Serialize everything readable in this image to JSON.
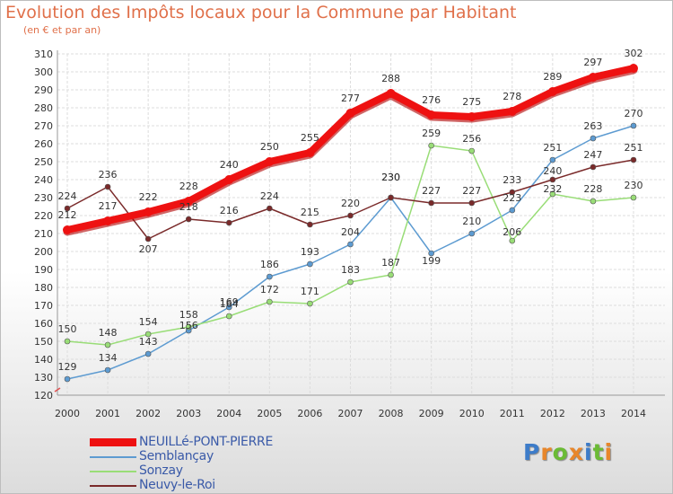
{
  "title": "Evolution des Impôts locaux pour la Commune par Habitant",
  "subtitle": "(en € et par an)",
  "logo": {
    "p": "P",
    "r": "r",
    "o": "o",
    "x": "x",
    "i": "i",
    "t": "t",
    "i2": "i"
  },
  "colors": {
    "NEUILLE": "#ee1111",
    "SEMBLANCAY": "#5d9bd1",
    "SONZAY": "#99dd77",
    "NEUVY": "#7a2a2a",
    "logo_p": "#3d7cc9",
    "logo_r": "#e8862a",
    "logo_o": "#6bbb35",
    "logo_x": "#e8862a",
    "logo_i": "#3d7cc9",
    "logo_t": "#6bbb35"
  },
  "chart_data": {
    "type": "line",
    "title": "Evolution des Impôts locaux pour la Commune par Habitant",
    "xlabel": "",
    "ylabel": "(en € et par an)",
    "categories": [
      "2000",
      "2001",
      "2002",
      "2003",
      "2004",
      "2005",
      "2006",
      "2007",
      "2008",
      "2009",
      "2010",
      "2011",
      "2012",
      "2013",
      "2014"
    ],
    "ylim": [
      120,
      310
    ],
    "yticks": [
      120,
      130,
      140,
      150,
      160,
      170,
      180,
      190,
      200,
      210,
      220,
      230,
      240,
      250,
      260,
      270,
      280,
      290,
      300,
      310
    ],
    "grid": true,
    "legend": "bottom-left",
    "series": [
      {
        "name": "NEUILLé-PONT-PIERRE",
        "key": "NEUILLE",
        "values": [
          212,
          217,
          222,
          228,
          240,
          250,
          255,
          277,
          288,
          276,
          275,
          278,
          289,
          297,
          302
        ]
      },
      {
        "name": "Semblançay",
        "key": "SEMBLANCAY",
        "values": [
          129,
          134,
          143,
          156,
          169,
          186,
          193,
          204,
          230,
          199,
          210,
          223,
          251,
          263,
          270
        ]
      },
      {
        "name": "Sonzay",
        "key": "SONZAY",
        "values": [
          150,
          148,
          154,
          158,
          164,
          172,
          171,
          183,
          187,
          259,
          256,
          206,
          232,
          228,
          230
        ]
      },
      {
        "name": "Neuvy-le-Roi",
        "key": "NEUVY",
        "values": [
          224,
          236,
          207,
          218,
          216,
          224,
          215,
          220,
          230,
          227,
          227,
          233,
          240,
          247,
          251
        ]
      }
    ]
  }
}
